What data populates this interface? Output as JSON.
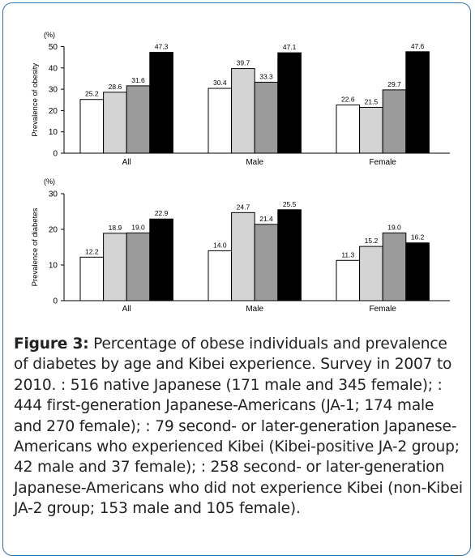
{
  "chart_data": [
    {
      "type": "bar",
      "unit_label": "(%)",
      "ylabel": "Prevalence of obesity",
      "ylim": [
        0,
        50
      ],
      "yticks": [
        0,
        10,
        20,
        30,
        40,
        50
      ],
      "categories": [
        "All",
        "Male",
        "Female"
      ],
      "series": [
        {
          "values": [
            25.2,
            30.4,
            22.6
          ],
          "color": "#ffffff"
        },
        {
          "values": [
            28.6,
            39.7,
            21.5
          ],
          "color": "#d4d4d4"
        },
        {
          "values": [
            31.6,
            33.3,
            29.7
          ],
          "color": "#9b9b9b"
        },
        {
          "values": [
            47.3,
            47.1,
            47.6
          ],
          "color": "#000000"
        }
      ],
      "labels": [
        [
          "25.2",
          "30.4",
          "22.6"
        ],
        [
          "28.6",
          "39.7",
          "21.5"
        ],
        [
          "31.6",
          "33.3",
          "29.7"
        ],
        [
          "47.3",
          "47.1",
          "47.6"
        ]
      ]
    },
    {
      "type": "bar",
      "unit_label": "(%)",
      "ylabel": "Prevalence of diabetes",
      "ylim": [
        0,
        30
      ],
      "yticks": [
        0,
        10,
        20,
        30
      ],
      "categories": [
        "All",
        "Male",
        "Female"
      ],
      "series": [
        {
          "values": [
            12.2,
            14.0,
            11.3
          ],
          "color": "#ffffff"
        },
        {
          "values": [
            18.9,
            24.7,
            15.2
          ],
          "color": "#d4d4d4"
        },
        {
          "values": [
            19.0,
            21.4,
            19.0
          ],
          "color": "#9b9b9b"
        },
        {
          "values": [
            22.9,
            25.5,
            16.2
          ],
          "color": "#000000"
        }
      ],
      "labels": [
        [
          "12.2",
          "14.0",
          "11.3"
        ],
        [
          "18.9",
          "24.7",
          "15.2"
        ],
        [
          "19.0",
          "21.4",
          "19.0"
        ],
        [
          "22.9",
          "25.5",
          "16.2"
        ]
      ]
    }
  ],
  "caption": {
    "label": "Figure 3:",
    "text": " Percentage of obese individuals and prevalence of diabetes by age and Kibei experience. Survey in 2007 to 2010. : 516 native Japanese (171 male and 345 female); : 444 first-generation Japanese-Americans (JA-1; 174 male and 270 female); : 79 second- or later-generation Japanese-Americans who experienced Kibei (Kibei-positive JA-2 group; 42 male and 37 female); : 258 second- or later-generation Japanese-Americans who did not experience Kibei (non-Kibei JA-2 group; 153 male and 105 female)."
  },
  "colors": {
    "border": "#2f6fad"
  }
}
